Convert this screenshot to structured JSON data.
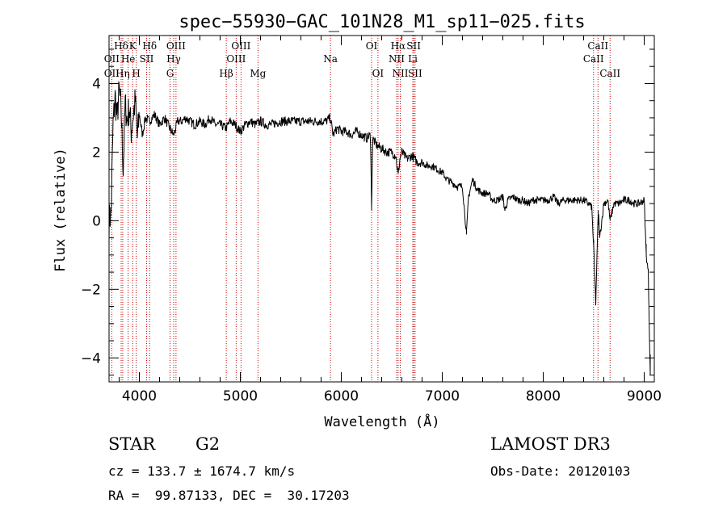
{
  "chart_data": {
    "type": "line",
    "title": "spec−55930−GAC_101N28_M1_sp11−025.fits",
    "xlabel": "Wavelength (Å)",
    "ylabel": "Flux (relative)",
    "xlim": [
      3700,
      9100
    ],
    "ylim": [
      -4.7,
      5.4
    ],
    "x_ticks": [
      4000,
      5000,
      6000,
      7000,
      8000,
      9000
    ],
    "x_tick_labels": [
      "4000",
      "5000",
      "6000",
      "7000",
      "8000",
      "9000"
    ],
    "y_ticks": [
      -4,
      -2,
      0,
      2,
      4
    ],
    "y_tick_labels": [
      "−4",
      "−2",
      "0",
      "2",
      "4"
    ],
    "grid": false,
    "line_color": "#000000",
    "marker_color": "#cc0000",
    "spectrum": {
      "x": [
        3700,
        3720,
        3740,
        3760,
        3780,
        3800,
        3820,
        3840,
        3860,
        3880,
        3900,
        3920,
        3940,
        3960,
        3980,
        4000,
        4030,
        4060,
        4100,
        4150,
        4200,
        4250,
        4300,
        4340,
        4380,
        4420,
        4460,
        4500,
        4550,
        4600,
        4650,
        4700,
        4750,
        4800,
        4860,
        4900,
        4950,
        5000,
        5050,
        5100,
        5150,
        5200,
        5250,
        5300,
        5400,
        5500,
        5600,
        5700,
        5800,
        5850,
        5890,
        5920,
        5960,
        6000,
        6050,
        6100,
        6150,
        6200,
        6250,
        6290,
        6300,
        6310,
        6350,
        6400,
        6450,
        6500,
        6540,
        6563,
        6580,
        6600,
        6650,
        6700,
        6750,
        6800,
        6850,
        6900,
        6950,
        7000,
        7050,
        7100,
        7150,
        7200,
        7240,
        7260,
        7300,
        7350,
        7400,
        7450,
        7500,
        7550,
        7600,
        7620,
        7650,
        7700,
        7750,
        7800,
        7850,
        7900,
        7950,
        8000,
        8050,
        8100,
        8150,
        8200,
        8250,
        8300,
        8350,
        8400,
        8450,
        8480,
        8500,
        8520,
        8545,
        8560,
        8600,
        8640,
        8662,
        8700,
        8750,
        8800,
        8850,
        8900,
        8950,
        9000,
        9020,
        9040,
        9060
      ],
      "y": [
        0.0,
        0.2,
        2.8,
        3.6,
        3.0,
        3.8,
        3.2,
        1.5,
        3.4,
        2.9,
        3.3,
        2.6,
        3.1,
        3.5,
        2.4,
        3.1,
        2.5,
        3.0,
        2.9,
        3.1,
        2.8,
        3.0,
        2.7,
        2.5,
        2.9,
        2.9,
        3.0,
        2.9,
        2.8,
        2.9,
        2.8,
        3.0,
        2.8,
        2.8,
        2.7,
        2.9,
        2.8,
        2.6,
        2.8,
        2.9,
        2.8,
        2.9,
        2.8,
        2.8,
        2.9,
        2.9,
        2.9,
        2.9,
        2.9,
        2.9,
        3.0,
        2.5,
        2.7,
        2.6,
        2.6,
        2.5,
        2.6,
        2.5,
        2.4,
        2.5,
        0.3,
        2.4,
        2.2,
        2.1,
        2.0,
        2.0,
        1.9,
        1.3,
        1.8,
        2.0,
        1.8,
        1.9,
        1.7,
        1.7,
        1.6,
        1.6,
        1.5,
        1.4,
        1.2,
        1.1,
        1.0,
        1.0,
        -0.4,
        0.7,
        1.2,
        0.9,
        0.8,
        0.8,
        0.6,
        0.6,
        0.7,
        0.3,
        0.6,
        0.7,
        0.6,
        0.6,
        0.5,
        0.6,
        0.6,
        0.6,
        0.6,
        0.7,
        0.5,
        0.6,
        0.6,
        0.6,
        0.6,
        0.6,
        0.5,
        0.4,
        -0.8,
        -2.4,
        0.3,
        -0.5,
        0.5,
        0.6,
        0.0,
        0.5,
        0.5,
        0.6,
        0.6,
        0.5,
        0.5,
        0.6,
        -1.0,
        -1.5,
        -4.5
      ]
    },
    "lines": [
      {
        "label": "Hδ",
        "wave": 3820,
        "row": 1
      },
      {
        "label": "OII",
        "wave": 3727,
        "row": 2
      },
      {
        "label": "OII",
        "wave": 3727,
        "row": 3
      },
      {
        "label": "K",
        "wave": 3934,
        "row": 1
      },
      {
        "label": "He",
        "wave": 3889,
        "row": 2
      },
      {
        "label": "Hη",
        "wave": 3835,
        "row": 3
      },
      {
        "label": "Hδ",
        "wave": 4102,
        "row": 1
      },
      {
        "label": "SII",
        "wave": 4072,
        "row": 2
      },
      {
        "label": "H",
        "wave": 3969,
        "row": 3
      },
      {
        "label": "OIII",
        "wave": 4363,
        "row": 1
      },
      {
        "label": "Hγ",
        "wave": 4340,
        "row": 2
      },
      {
        "label": "G",
        "wave": 4304,
        "row": 3
      },
      {
        "label": "OIII",
        "wave": 5007,
        "row": 1
      },
      {
        "label": "OIII",
        "wave": 4959,
        "row": 2
      },
      {
        "label": "Hβ",
        "wave": 4861,
        "row": 3
      },
      {
        "label": "Mg",
        "wave": 5175,
        "row": 3
      },
      {
        "label": "Na",
        "wave": 5893,
        "row": 2
      },
      {
        "label": "OI",
        "wave": 6300,
        "row": 1
      },
      {
        "label": "OI",
        "wave": 6363,
        "row": 3
      },
      {
        "label": "Hα",
        "wave": 6563,
        "row": 1
      },
      {
        "label": "NII",
        "wave": 6548,
        "row": 2
      },
      {
        "label": "NII",
        "wave": 6584,
        "row": 3
      },
      {
        "label": "SII",
        "wave": 6717,
        "row": 1
      },
      {
        "label": "Li",
        "wave": 6708,
        "row": 2
      },
      {
        "label": "SII",
        "wave": 6731,
        "row": 3
      },
      {
        "label": "CaII",
        "wave": 8542,
        "row": 1
      },
      {
        "label": "CaII",
        "wave": 8498,
        "row": 2
      },
      {
        "label": "CaII",
        "wave": 8662,
        "row": 3
      }
    ]
  },
  "info": {
    "object_class": "STAR",
    "subclass": "G2",
    "survey": "LAMOST DR3",
    "cz": "cz = 133.7 ± 1674.7 km/s",
    "obs_date": "Obs-Date: 20120103",
    "coords": "RA =  99.87133, DEC =  30.17203"
  }
}
